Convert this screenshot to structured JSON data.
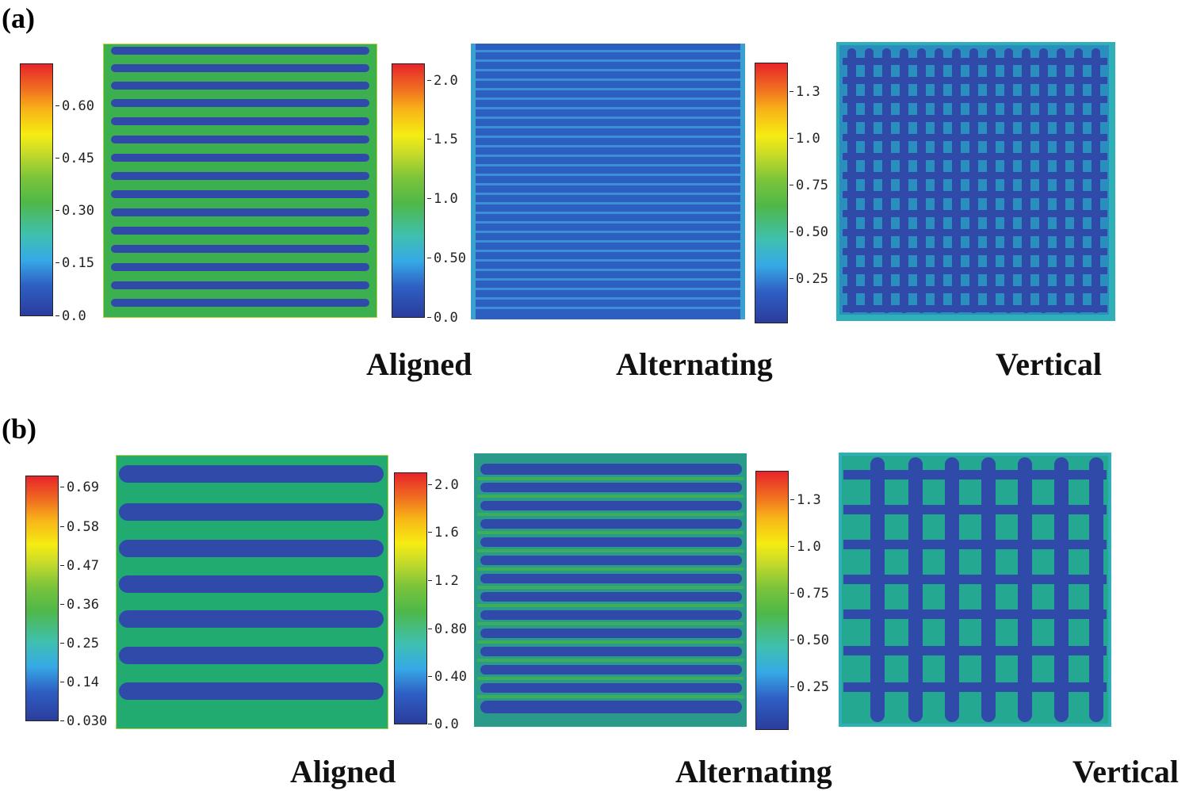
{
  "panels": {
    "a": {
      "label": "(a)",
      "captions": [
        "Aligned",
        "Alternating",
        "Vertical"
      ],
      "colorbars": [
        {
          "ticks": [
            "0.60",
            "0.45",
            "0.30",
            "0.15",
            "0.0"
          ]
        },
        {
          "ticks": [
            "2.0",
            "1.5",
            "1.0",
            "0.50",
            "0.0"
          ]
        },
        {
          "ticks": [
            "1.3",
            "1.0",
            "0.75",
            "0.50",
            "0.25"
          ]
        }
      ]
    },
    "b": {
      "label": "(b)",
      "captions": [
        "Aligned",
        "Alternating",
        "Vertical"
      ],
      "colorbars": [
        {
          "ticks": [
            "0.69",
            "0.58",
            "0.47",
            "0.36",
            "0.25",
            "0.14",
            "0.030"
          ]
        },
        {
          "ticks": [
            "2.0",
            "1.6",
            "1.2",
            "0.80",
            "0.40",
            "0.0"
          ]
        },
        {
          "ticks": [
            "1.3",
            "1.0",
            "0.75",
            "0.50",
            "0.25"
          ]
        }
      ]
    }
  },
  "colors": {
    "channel": "#2f4aa8",
    "aligned_background": "#3cb04e",
    "aligned_b_background": "#22ab70",
    "alternating_background": "#2d5fc0",
    "alternating_b_background": "#2a9a8a",
    "vertical_background": "#2fb0b8"
  }
}
